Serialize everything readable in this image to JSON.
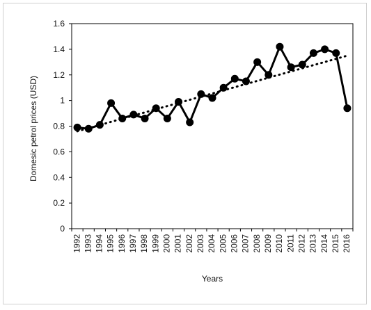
{
  "chart_data": {
    "type": "line",
    "title": "",
    "xlabel": "Years",
    "ylabel": "Domesic petrol prices (USD)",
    "categories": [
      "1992",
      "1993",
      "1994",
      "1995",
      "1996",
      "1997",
      "1998",
      "1999",
      "2000",
      "2001",
      "2002",
      "2003",
      "2004",
      "2005",
      "2006",
      "2007",
      "2008",
      "2009",
      "2010",
      "2011",
      "2012",
      "2013",
      "2014",
      "2015",
      "2016"
    ],
    "series": [
      {
        "values": [
          0.79,
          0.78,
          0.81,
          0.98,
          0.86,
          0.89,
          0.86,
          0.94,
          0.86,
          0.99,
          0.83,
          1.05,
          1.02,
          1.1,
          1.17,
          1.15,
          1.3,
          1.2,
          1.42,
          1.26,
          1.28,
          1.37,
          1.4,
          1.37,
          0.94
        ],
        "color": "#000000",
        "marker": "circle"
      },
      {
        "style": "dotted",
        "trendline": "linear",
        "start": 0.76,
        "end": 1.35,
        "color": "#000000"
      }
    ],
    "yticks": [
      "0",
      "0.2",
      "0.4",
      "0.6",
      "0.8",
      "1",
      "1.2",
      "1.4",
      "1.6"
    ],
    "ylim": [
      0,
      1.6
    ],
    "grid": false,
    "legend": "none"
  }
}
